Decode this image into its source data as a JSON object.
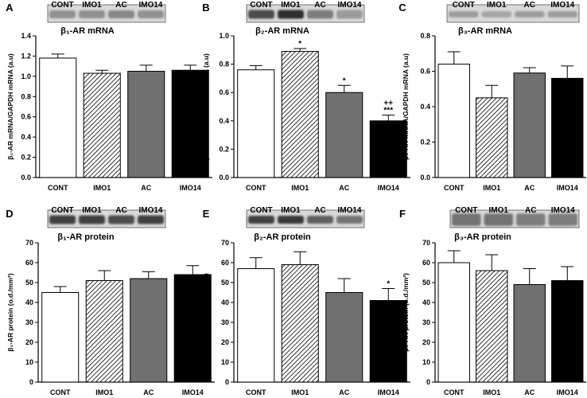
{
  "figure": {
    "categories": [
      "CONT",
      "IMO1",
      "AC",
      "IMO14"
    ],
    "fills": [
      "#ffffff",
      "hatch",
      "#707070",
      "#000000"
    ]
  },
  "chart_data": [
    {
      "letter": "A",
      "type": "bar",
      "title": "β₁-AR mRNA",
      "ylabel": "β₁-AR mRNA/GAPDH mRNA (a.u)",
      "categories": [
        "CONT",
        "IMO1",
        "AC",
        "IMO14"
      ],
      "values": [
        1.18,
        1.03,
        1.05,
        1.06
      ],
      "errors": [
        0.04,
        0.03,
        0.06,
        0.05
      ],
      "annotations": [
        "",
        "",
        "",
        ""
      ],
      "ylim": [
        0,
        1.4
      ],
      "yticks": [
        "0.0",
        "0.2",
        "0.4",
        "0.6",
        "0.8",
        "1.0",
        "1.2",
        "1.4"
      ],
      "blot": {
        "labels": [
          "CONT",
          "IMO1",
          "AC",
          "IMO14"
        ],
        "band_darkness": [
          0.45,
          0.45,
          0.5,
          0.45
        ],
        "thickness": 0.45
      }
    },
    {
      "letter": "B",
      "type": "bar",
      "title": "β₂-AR mRNA",
      "ylabel": "β₂-AR mRNA/GAPDH mRNA (a.u)",
      "categories": [
        "CONT",
        "IMO1",
        "AC",
        "IMO14"
      ],
      "values": [
        0.76,
        0.89,
        0.6,
        0.4
      ],
      "errors": [
        0.03,
        0.02,
        0.05,
        0.04
      ],
      "annotations": [
        "",
        "*",
        "*",
        "++\n***"
      ],
      "ylim": [
        0,
        1.0
      ],
      "yticks": [
        "0.0",
        "0.2",
        "0.4",
        "0.6",
        "0.8",
        "1.0"
      ],
      "blot": {
        "labels": [
          "CONT",
          "IMO1",
          "AC",
          "IMO14"
        ],
        "band_darkness": [
          0.8,
          0.95,
          0.55,
          0.4
        ],
        "thickness": 0.5
      }
    },
    {
      "letter": "C",
      "type": "bar",
      "title": "β₃-AR mRNA",
      "ylabel": "β₃-AR mRNA/GAPDH mRNA (a.u)",
      "categories": [
        "CONT",
        "IMO1",
        "AC",
        "IMO14"
      ],
      "values": [
        0.64,
        0.45,
        0.59,
        0.56
      ],
      "errors": [
        0.07,
        0.07,
        0.03,
        0.07
      ],
      "annotations": [
        "",
        "",
        "",
        ""
      ],
      "ylim": [
        0,
        0.8
      ],
      "yticks": [
        "0.0",
        "0.2",
        "0.4",
        "0.6",
        "0.8"
      ],
      "blot": {
        "labels": [
          "CONT",
          "IMO1",
          "AC",
          "IMO14"
        ],
        "band_darkness": [
          0.4,
          0.35,
          0.4,
          0.4
        ],
        "thickness": 0.35
      }
    },
    {
      "letter": "D",
      "type": "bar",
      "title": "β₁-AR protein",
      "ylabel": "β₁-AR protein (o.d./mm²)",
      "categories": [
        "CONT",
        "IMO1",
        "AC",
        "IMO14"
      ],
      "values": [
        45,
        51,
        52,
        54
      ],
      "errors": [
        3,
        5,
        3.5,
        4.5
      ],
      "annotations": [
        "",
        "",
        "",
        ""
      ],
      "ylim": [
        0,
        70
      ],
      "yticks": [
        "0",
        "10",
        "20",
        "30",
        "40",
        "50",
        "60",
        "70"
      ],
      "blot": {
        "labels": [
          "CONT",
          "IMO1",
          "AC",
          "IMO14"
        ],
        "band_darkness": [
          0.85,
          0.85,
          0.8,
          0.85
        ],
        "thickness": 0.5
      }
    },
    {
      "letter": "E",
      "type": "bar",
      "title": "β₂-AR protein",
      "ylabel": "β₂-AR protein (o.d./mm²)",
      "categories": [
        "CONT",
        "IMO1",
        "AC",
        "IMO14"
      ],
      "values": [
        57,
        59,
        45,
        41
      ],
      "errors": [
        5.5,
        6.5,
        7,
        6
      ],
      "annotations": [
        "",
        "",
        "",
        "*"
      ],
      "ylim": [
        0,
        70
      ],
      "yticks": [
        "0",
        "10",
        "20",
        "30",
        "40",
        "50",
        "60",
        "70"
      ],
      "blot": {
        "labels": [
          "CONT",
          "IMO1",
          "AC",
          "IMO14"
        ],
        "band_darkness": [
          0.85,
          0.9,
          0.7,
          0.6
        ],
        "thickness": 0.45
      }
    },
    {
      "letter": "F",
      "type": "bar",
      "title": "β₃-AR protein",
      "ylabel": "β₃-AR protein (o.d./mm²)",
      "categories": [
        "CONT",
        "IMO1",
        "AC",
        "IMO14"
      ],
      "values": [
        60,
        56,
        49,
        51
      ],
      "errors": [
        6,
        8,
        8,
        7
      ],
      "annotations": [
        "",
        "",
        "",
        ""
      ],
      "ylim": [
        0,
        70
      ],
      "yticks": [
        "0",
        "10",
        "20",
        "30",
        "40",
        "50",
        "60",
        "70"
      ],
      "blot": {
        "labels": [
          "CONT",
          "IMO1",
          "AC",
          "IMO14"
        ],
        "band_darkness": [
          0.6,
          0.6,
          0.55,
          0.55
        ],
        "thickness": 0.7
      }
    }
  ]
}
